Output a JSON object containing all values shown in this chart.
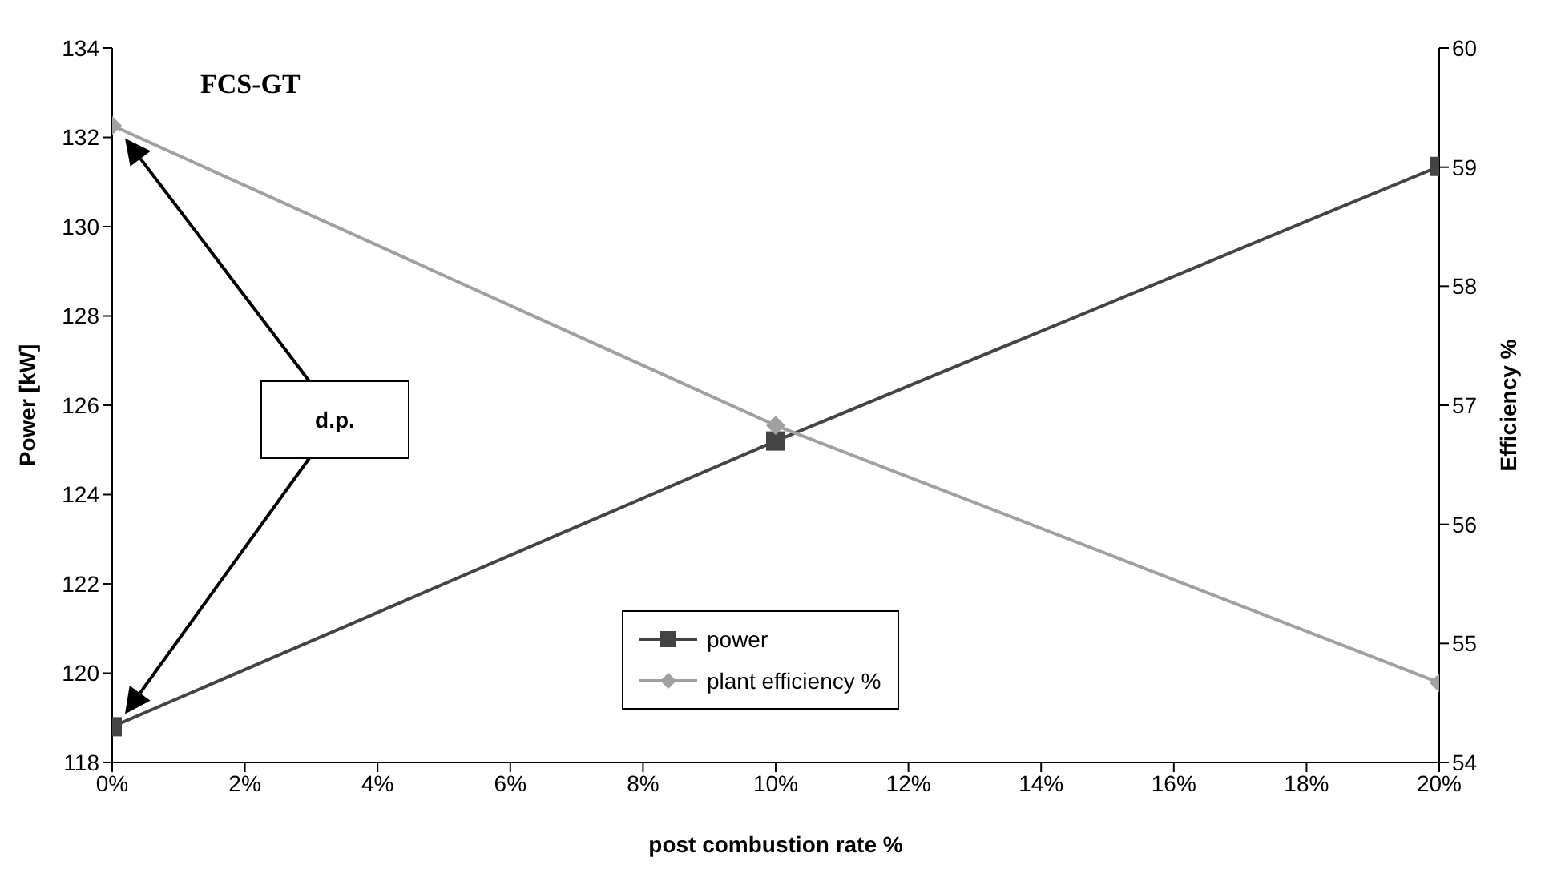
{
  "chart_data": {
    "type": "line",
    "xlabel": "post combustion rate %",
    "ylabel": "Power [kW]",
    "y2label": "Efficiency %",
    "x": [
      0,
      10,
      20
    ],
    "xlim": [
      0,
      20
    ],
    "xticks": [
      {
        "value": 0,
        "label": "0%"
      },
      {
        "value": 2,
        "label": "2%"
      },
      {
        "value": 4,
        "label": "4%"
      },
      {
        "value": 6,
        "label": "6%"
      },
      {
        "value": 8,
        "label": "8%"
      },
      {
        "value": 10,
        "label": "10%"
      },
      {
        "value": 12,
        "label": "12%"
      },
      {
        "value": 14,
        "label": "14%"
      },
      {
        "value": 16,
        "label": "16%"
      },
      {
        "value": 18,
        "label": "18%"
      },
      {
        "value": 20,
        "label": "20%"
      }
    ],
    "ylim": [
      118,
      134
    ],
    "yticks": [
      118,
      120,
      122,
      124,
      126,
      128,
      130,
      132,
      134
    ],
    "y2lim": [
      54,
      60
    ],
    "y2ticks": [
      54,
      55,
      56,
      57,
      58,
      59,
      60
    ],
    "series": [
      {
        "name": "power",
        "color": "#444444",
        "marker": "square",
        "values": [
          118.8,
          125.2,
          131.35
        ]
      },
      {
        "name": "plant efficiency %",
        "color": "#a0a0a0",
        "marker": "diamond",
        "axis": "y2",
        "values": [
          59.35,
          56.83,
          54.67
        ]
      }
    ],
    "annotations": [
      "FCS-GT",
      "d.p."
    ],
    "legend": "bottom"
  }
}
